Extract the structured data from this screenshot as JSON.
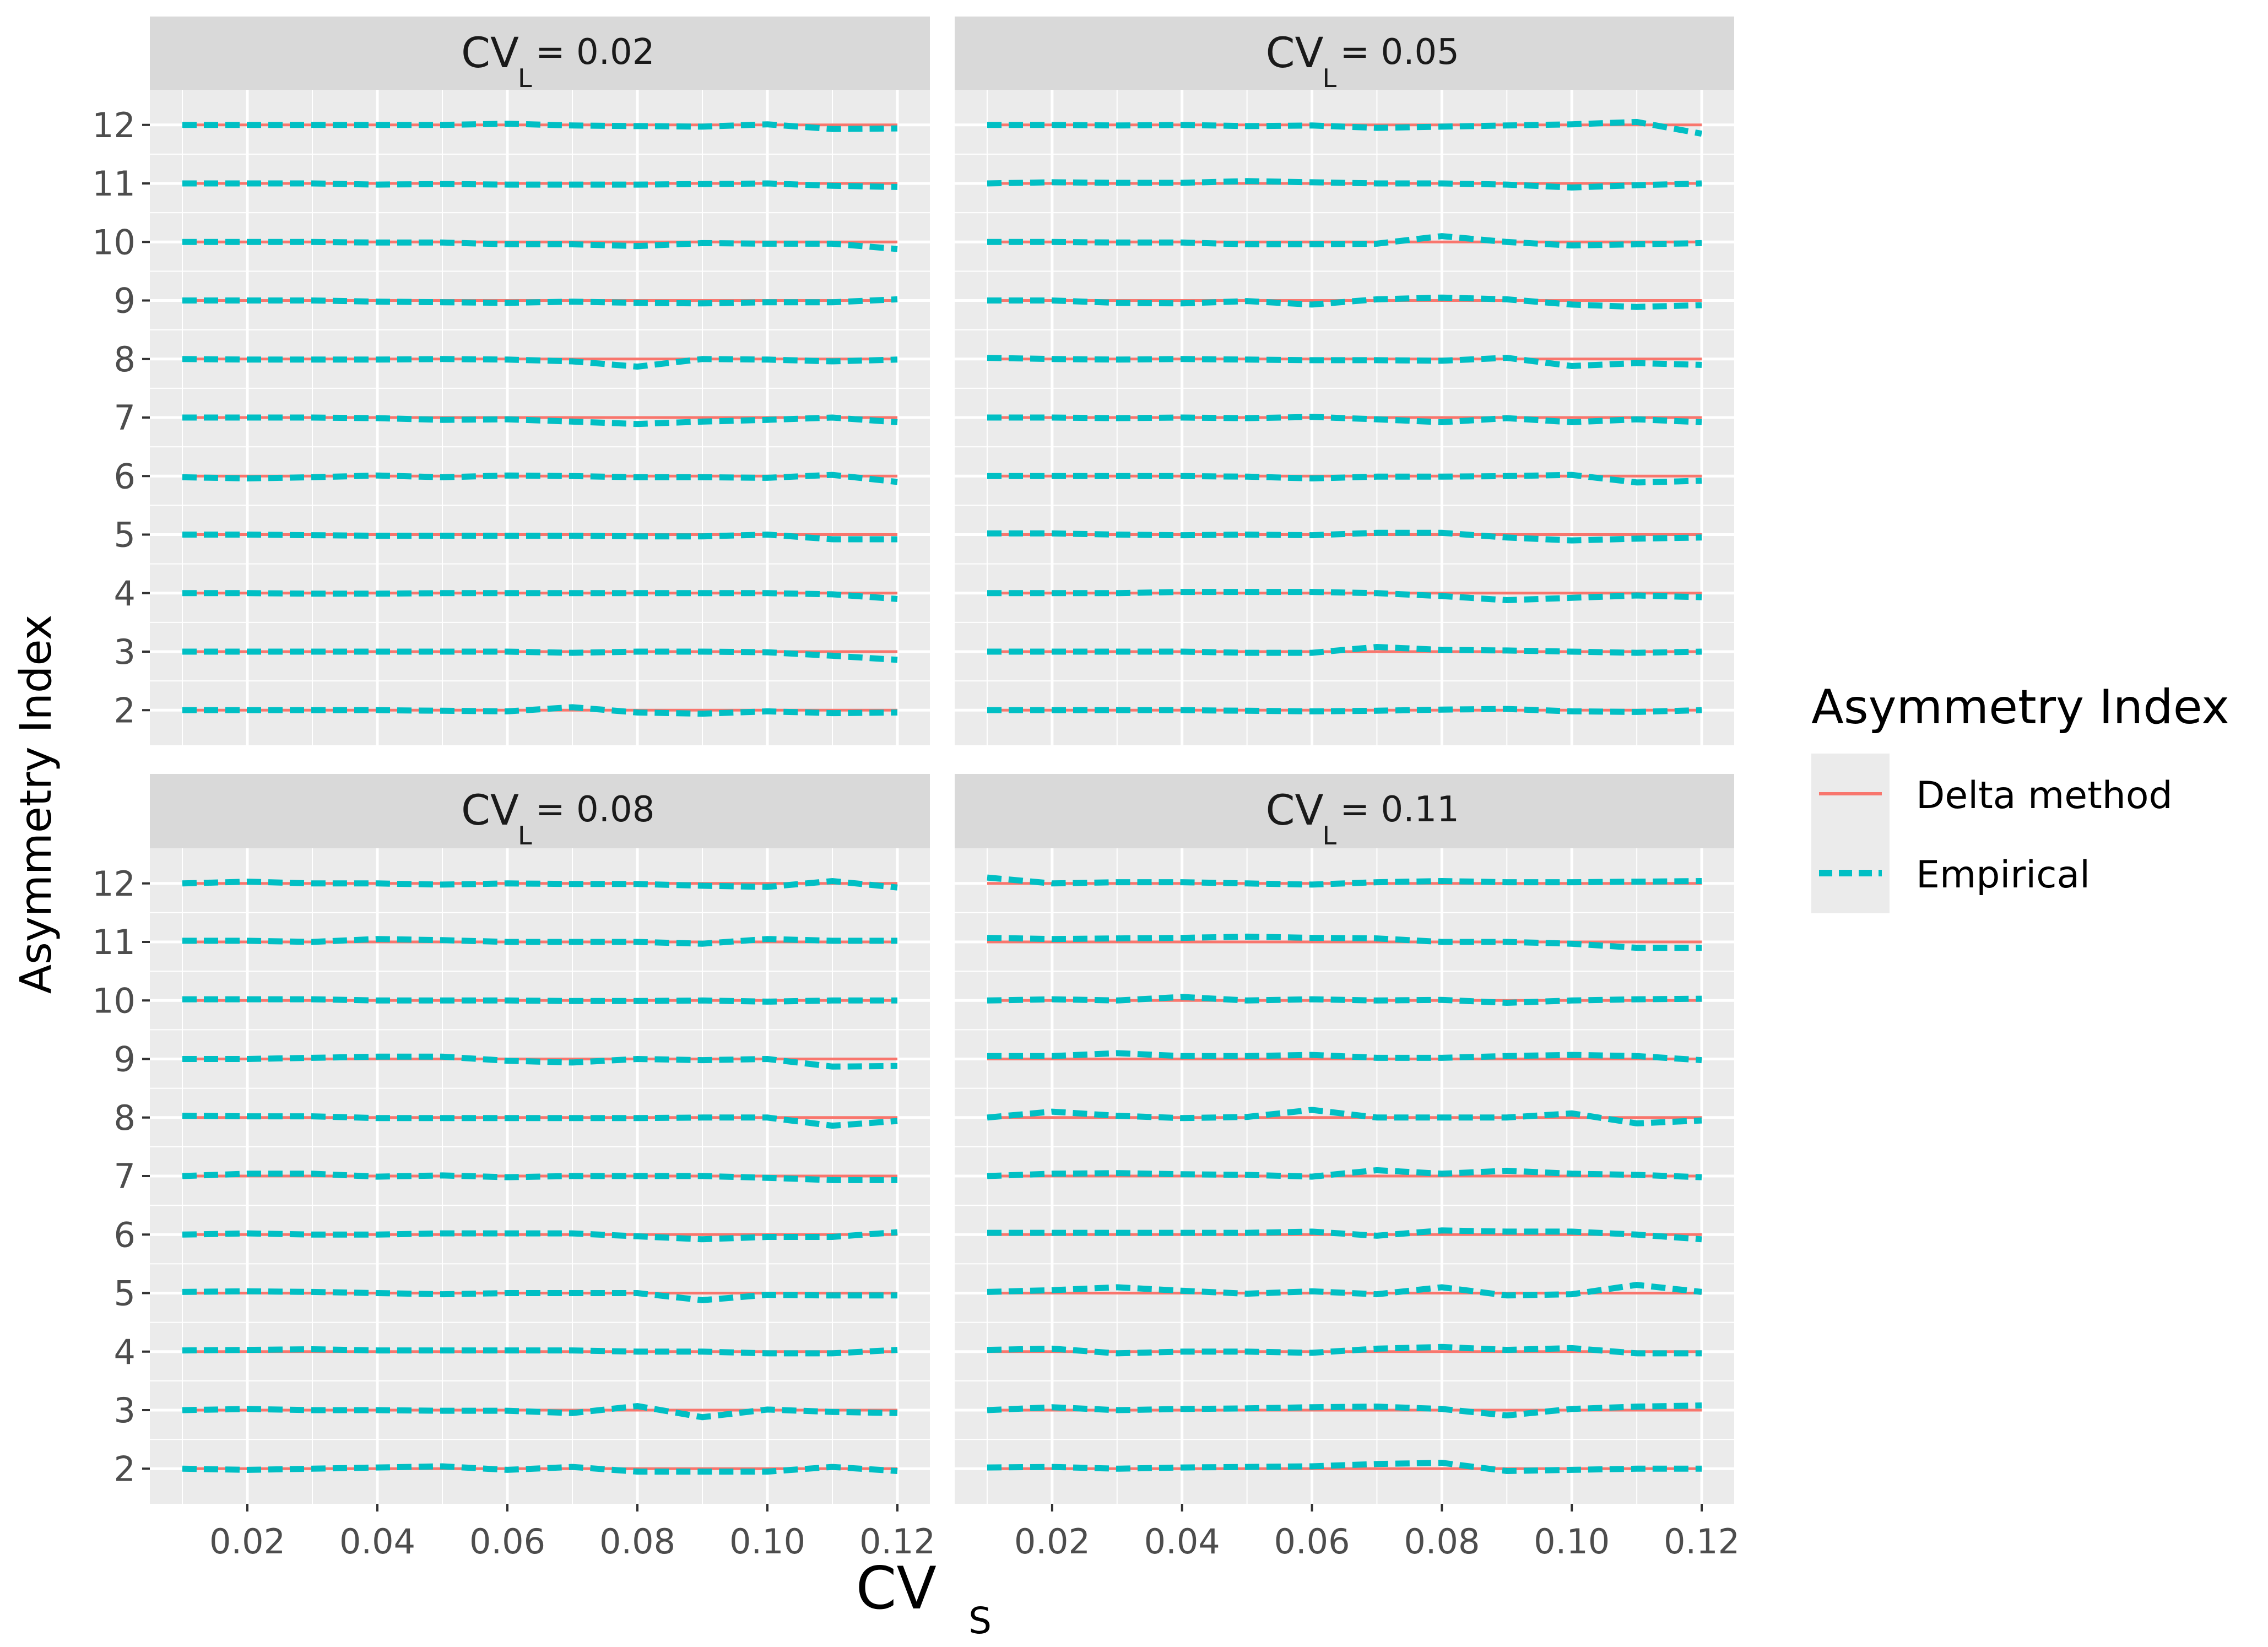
{
  "figure": {
    "y_axis_title": "Asymmetry Index",
    "x_axis_title_main": "CV",
    "x_axis_title_sub": "S"
  },
  "legend": {
    "title": "Asymmetry Index",
    "entries": [
      {
        "label": "Delta method",
        "color": "#F8766D",
        "style": "solid"
      },
      {
        "label": "Empirical",
        "color": "#00BFC4",
        "style": "dashed"
      }
    ]
  },
  "chart_data": {
    "type": "line",
    "layout": "facet-grid 2x2",
    "x_ticks": [
      0.02,
      0.04,
      0.06,
      0.08,
      0.1,
      0.12
    ],
    "x_tick_labels": [
      "0.02",
      "0.04",
      "0.06",
      "0.08",
      "0.10",
      "0.12"
    ],
    "y_ticks": [
      2,
      3,
      4,
      5,
      6,
      7,
      8,
      9,
      10,
      11,
      12
    ],
    "y_tick_labels": [
      "2",
      "3",
      "4",
      "5",
      "6",
      "7",
      "8",
      "9",
      "10",
      "11",
      "12"
    ],
    "xlim": [
      0.005,
      0.125
    ],
    "ylim": [
      1.4,
      12.6
    ],
    "grid": true,
    "legend_position": "right",
    "x": [
      0.01,
      0.02,
      0.03,
      0.04,
      0.05,
      0.06,
      0.07,
      0.08,
      0.09,
      0.1,
      0.11,
      0.12
    ],
    "levels": [
      2,
      3,
      4,
      5,
      6,
      7,
      8,
      9,
      10,
      11,
      12
    ],
    "panels": [
      {
        "strip": {
          "prefix": "CV",
          "sub": "L",
          "value": "= 0.02"
        },
        "delta_method": "constant at each asymmetry index level",
        "empirical": [
          [
            2.0,
            2.0,
            2.0,
            2.0,
            1.99,
            1.98,
            2.05,
            1.96,
            1.94,
            1.98,
            1.95,
            1.96
          ],
          [
            3.0,
            3.0,
            3.0,
            3.0,
            3.0,
            3.0,
            2.98,
            3.0,
            3.0,
            2.99,
            2.93,
            2.86
          ],
          [
            4.0,
            4.0,
            3.99,
            3.99,
            4.0,
            4.0,
            4.0,
            4.0,
            4.0,
            4.0,
            3.98,
            3.9
          ],
          [
            5.0,
            5.0,
            4.99,
            4.98,
            4.98,
            4.98,
            4.98,
            4.97,
            4.97,
            5.0,
            4.92,
            4.92
          ],
          [
            5.98,
            5.96,
            5.98,
            6.01,
            5.98,
            6.01,
            6.0,
            5.98,
            5.98,
            5.97,
            6.02,
            5.9
          ],
          [
            7.0,
            7.0,
            7.0,
            6.99,
            6.96,
            6.97,
            6.93,
            6.89,
            6.93,
            6.96,
            7.0,
            6.92
          ],
          [
            8.0,
            7.99,
            7.99,
            7.99,
            8.0,
            7.99,
            7.96,
            7.87,
            8.0,
            7.99,
            7.96,
            7.99
          ],
          [
            9.0,
            9.0,
            9.0,
            8.98,
            8.97,
            8.96,
            8.98,
            8.96,
            8.95,
            8.97,
            8.97,
            9.02
          ],
          [
            10.0,
            10.0,
            10.0,
            9.99,
            9.99,
            9.96,
            9.96,
            9.93,
            9.98,
            9.97,
            9.97,
            9.88
          ],
          [
            11.0,
            11.0,
            11.0,
            10.98,
            10.99,
            10.98,
            10.98,
            10.98,
            10.99,
            11.0,
            10.96,
            10.94
          ],
          [
            12.0,
            12.0,
            12.0,
            12.0,
            12.0,
            12.02,
            11.99,
            11.98,
            11.97,
            12.01,
            11.93,
            11.94
          ]
        ]
      },
      {
        "strip": {
          "prefix": "CV",
          "sub": "L",
          "value": "= 0.05"
        },
        "delta_method": "constant at each asymmetry index level",
        "empirical": [
          [
            2.0,
            2.0,
            2.0,
            2.0,
            1.99,
            1.98,
            1.99,
            2.01,
            2.02,
            1.98,
            1.97,
            2.0
          ],
          [
            3.0,
            3.0,
            3.0,
            3.0,
            2.98,
            2.98,
            3.08,
            3.03,
            3.02,
            3.0,
            2.98,
            3.0
          ],
          [
            4.0,
            4.0,
            4.0,
            4.02,
            4.02,
            4.02,
            4.0,
            3.95,
            3.88,
            3.92,
            3.96,
            3.93
          ],
          [
            5.02,
            5.02,
            5.0,
            4.99,
            5.0,
            4.99,
            5.03,
            5.03,
            4.95,
            4.9,
            4.93,
            4.95
          ],
          [
            6.0,
            6.0,
            6.0,
            6.0,
            5.99,
            5.96,
            5.99,
            5.99,
            6.0,
            6.02,
            5.89,
            5.92
          ],
          [
            7.0,
            7.0,
            6.99,
            7.0,
            6.99,
            7.01,
            6.97,
            6.92,
            6.99,
            6.92,
            6.97,
            6.92
          ],
          [
            8.02,
            8.0,
            7.99,
            8.0,
            7.99,
            7.98,
            7.98,
            7.97,
            8.02,
            7.88,
            7.93,
            7.9
          ],
          [
            9.0,
            9.0,
            8.96,
            8.95,
            8.99,
            8.93,
            9.02,
            9.05,
            9.02,
            8.93,
            8.89,
            8.92
          ],
          [
            10.0,
            10.0,
            9.99,
            9.99,
            9.96,
            9.96,
            9.97,
            10.1,
            10.0,
            9.94,
            9.96,
            9.98
          ],
          [
            11.0,
            11.02,
            11.01,
            11.01,
            11.04,
            11.02,
            11.0,
            11.0,
            10.98,
            10.93,
            10.97,
            11.0
          ],
          [
            12.0,
            12.0,
            11.99,
            12.0,
            11.98,
            11.99,
            11.95,
            11.97,
            11.99,
            12.01,
            12.05,
            11.85
          ]
        ]
      },
      {
        "strip": {
          "prefix": "CV",
          "sub": "L",
          "value": "= 0.08"
        },
        "delta_method": "constant at each asymmetry index level",
        "empirical": [
          [
            2.0,
            1.98,
            2.0,
            2.02,
            2.04,
            1.98,
            2.03,
            1.95,
            1.95,
            1.95,
            2.03,
            1.96
          ],
          [
            3.0,
            3.02,
            3.0,
            3.0,
            2.99,
            2.99,
            2.95,
            3.07,
            2.88,
            3.01,
            2.97,
            2.95
          ],
          [
            4.02,
            4.03,
            4.04,
            4.02,
            4.02,
            4.02,
            4.02,
            4.0,
            4.0,
            3.97,
            3.97,
            4.03
          ],
          [
            5.02,
            5.03,
            5.02,
            5.0,
            4.98,
            5.0,
            5.0,
            5.0,
            4.88,
            4.97,
            4.96,
            4.96
          ],
          [
            6.0,
            6.02,
            6.0,
            6.0,
            6.02,
            6.02,
            6.02,
            5.97,
            5.92,
            5.96,
            5.96,
            6.04
          ],
          [
            7.0,
            7.04,
            7.04,
            6.99,
            7.01,
            6.98,
            7.0,
            7.0,
            7.0,
            6.97,
            6.93,
            6.93
          ],
          [
            8.03,
            8.02,
            8.02,
            7.99,
            7.99,
            7.99,
            7.99,
            7.99,
            8.0,
            8.0,
            7.86,
            7.94
          ],
          [
            9.0,
            9.0,
            9.02,
            9.04,
            9.04,
            8.97,
            8.94,
            9.0,
            8.98,
            9.0,
            8.87,
            8.88
          ],
          [
            10.02,
            10.02,
            10.02,
            10.0,
            10.0,
            10.0,
            9.99,
            9.99,
            10.0,
            9.98,
            10.0,
            10.0
          ],
          [
            11.02,
            11.02,
            11.0,
            11.05,
            11.03,
            11.0,
            11.0,
            11.0,
            10.97,
            11.05,
            11.02,
            11.02
          ],
          [
            12.0,
            12.03,
            12.0,
            12.0,
            11.98,
            12.0,
            11.99,
            11.99,
            11.96,
            11.94,
            12.04,
            11.93
          ]
        ]
      },
      {
        "strip": {
          "prefix": "CV",
          "sub": "L",
          "value": "= 0.11"
        },
        "delta_method": "constant at each asymmetry index level",
        "empirical": [
          [
            2.02,
            2.03,
            2.0,
            2.02,
            2.03,
            2.04,
            2.08,
            2.1,
            1.96,
            1.98,
            2.0,
            2.0
          ],
          [
            3.0,
            3.05,
            3.0,
            3.02,
            3.03,
            3.05,
            3.06,
            3.02,
            2.91,
            3.02,
            3.06,
            3.08
          ],
          [
            4.03,
            4.05,
            3.97,
            4.0,
            4.0,
            3.98,
            4.05,
            4.08,
            4.03,
            4.06,
            3.97,
            3.97
          ],
          [
            5.02,
            5.05,
            5.1,
            5.04,
            4.99,
            5.03,
            4.98,
            5.1,
            4.96,
            4.98,
            5.14,
            5.02
          ],
          [
            6.03,
            6.03,
            6.03,
            6.03,
            6.03,
            6.05,
            5.98,
            6.07,
            6.05,
            6.05,
            6.0,
            5.92
          ],
          [
            7.0,
            7.04,
            7.05,
            7.03,
            7.02,
            6.99,
            7.1,
            7.04,
            7.09,
            7.04,
            7.02,
            6.98
          ],
          [
            8.0,
            8.1,
            8.03,
            7.99,
            8.01,
            8.13,
            8.0,
            8.0,
            8.0,
            8.07,
            7.9,
            7.95
          ],
          [
            9.05,
            9.05,
            9.1,
            9.05,
            9.05,
            9.07,
            9.02,
            9.02,
            9.05,
            9.07,
            9.05,
            8.98
          ],
          [
            10.0,
            10.02,
            10.0,
            10.06,
            10.0,
            10.02,
            10.0,
            10.01,
            9.96,
            10.0,
            10.02,
            10.03
          ],
          [
            11.07,
            11.05,
            11.06,
            11.07,
            11.09,
            11.07,
            11.06,
            11.0,
            11.0,
            10.97,
            10.9,
            10.9
          ],
          [
            12.1,
            12.0,
            12.02,
            12.02,
            12.0,
            11.98,
            12.02,
            12.04,
            12.02,
            12.02,
            12.03,
            12.04
          ]
        ]
      }
    ]
  }
}
